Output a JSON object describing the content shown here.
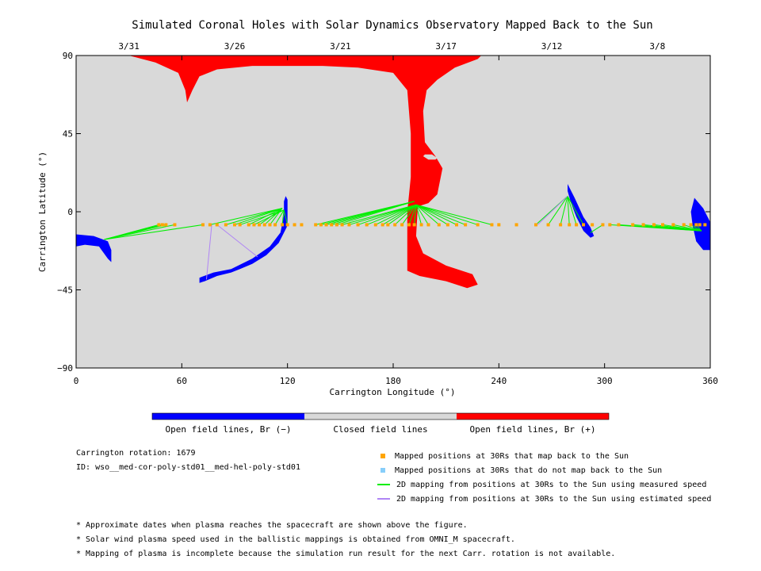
{
  "chart_data": {
    "type": "map",
    "title": "Simulated Coronal Holes with Solar Dynamics Observatory Mapped Back to the Sun",
    "xlabel": "Carrington Longitude (°)",
    "ylabel": "Carrington Latitude (°)",
    "xlim": [
      0,
      360
    ],
    "ylim": [
      -90,
      90
    ],
    "x_ticks": [
      "0",
      "60",
      "120",
      "180",
      "240",
      "300",
      "360"
    ],
    "y_ticks": [
      "90",
      "45",
      "0",
      "−45",
      "−90"
    ],
    "top_axis_dates": [
      {
        "label": "3/31",
        "lon": 30
      },
      {
        "label": "3/26",
        "lon": 90
      },
      {
        "label": "3/21",
        "lon": 150
      },
      {
        "label": "3/17",
        "lon": 210
      },
      {
        "label": "3/12",
        "lon": 270
      },
      {
        "label": "3/8",
        "lon": 330
      }
    ],
    "colors": {
      "closed": "#d9d9d9",
      "open_negative": "#0000ff",
      "open_positive": "#ff0000",
      "mapped_point": "#ffa500",
      "unmapped_point": "#87cefa",
      "measured_line": "#00ee00",
      "estimated_line": "#b085f5"
    },
    "positive_hole": [
      [
        30,
        90
      ],
      [
        230,
        90
      ],
      [
        228,
        88
      ],
      [
        215,
        83
      ],
      [
        205,
        76
      ],
      [
        199,
        70
      ],
      [
        197,
        58
      ],
      [
        198,
        40
      ],
      [
        204,
        32
      ],
      [
        208,
        25
      ],
      [
        205,
        10
      ],
      [
        200,
        5
      ],
      [
        194,
        3
      ],
      [
        193,
        -14
      ],
      [
        197,
        -24
      ],
      [
        210,
        -31
      ],
      [
        225,
        -36
      ],
      [
        228,
        -42
      ],
      [
        222,
        -44
      ],
      [
        210,
        -40
      ],
      [
        195,
        -37
      ],
      [
        188,
        -34
      ],
      [
        188,
        -14
      ],
      [
        188,
        0
      ],
      [
        190,
        20
      ],
      [
        190,
        45
      ],
      [
        188,
        70
      ],
      [
        180,
        80
      ],
      [
        160,
        83
      ],
      [
        140,
        84
      ],
      [
        100,
        84
      ],
      [
        80,
        82
      ],
      [
        70,
        78
      ],
      [
        66,
        70
      ],
      [
        63,
        63
      ],
      [
        62,
        70
      ],
      [
        58,
        80
      ],
      [
        45,
        86
      ]
    ],
    "positive_hole_inner": [
      [
        197,
        32
      ],
      [
        200,
        30
      ],
      [
        204,
        30
      ],
      [
        205,
        31
      ],
      [
        202,
        33
      ],
      [
        198,
        33
      ]
    ],
    "negative_holes": [
      [
        [
          0,
          -13
        ],
        [
          10,
          -14
        ],
        [
          18,
          -17
        ],
        [
          20,
          -22
        ],
        [
          20,
          -29
        ],
        [
          18,
          -27
        ],
        [
          13,
          -20
        ],
        [
          5,
          -19
        ],
        [
          0,
          -20
        ]
      ],
      [
        [
          119,
          9
        ],
        [
          120,
          7
        ],
        [
          120,
          -8
        ],
        [
          115,
          -18
        ],
        [
          108,
          -25
        ],
        [
          100,
          -30
        ],
        [
          93,
          -33
        ],
        [
          88,
          -35
        ],
        [
          80,
          -37
        ],
        [
          73,
          -40
        ],
        [
          70,
          -41
        ],
        [
          70,
          -38
        ],
        [
          78,
          -35
        ],
        [
          88,
          -33
        ],
        [
          100,
          -27
        ],
        [
          110,
          -20
        ],
        [
          116,
          -12
        ],
        [
          118,
          -2
        ],
        [
          118,
          6
        ]
      ],
      [
        [
          279,
          16
        ],
        [
          283,
          8
        ],
        [
          288,
          -3
        ],
        [
          292,
          -9
        ],
        [
          294,
          -14
        ],
        [
          292,
          -15
        ],
        [
          288,
          -11
        ],
        [
          284,
          -3
        ],
        [
          281,
          5
        ],
        [
          279,
          12
        ]
      ],
      [
        [
          351,
          8
        ],
        [
          356,
          2
        ],
        [
          360,
          -6
        ],
        [
          360,
          -22
        ],
        [
          356,
          -22
        ],
        [
          352,
          -17
        ],
        [
          350,
          -8
        ],
        [
          349,
          0
        ]
      ]
    ],
    "mapped_latitude": -7.5,
    "mapped_longitudes": [
      47,
      49,
      51,
      56,
      72,
      76,
      80,
      85,
      90,
      93,
      98,
      101,
      104,
      107,
      110,
      113,
      117,
      120,
      124,
      128,
      136,
      139,
      142,
      145,
      148,
      151,
      155,
      160,
      165,
      170,
      174,
      177,
      181,
      185,
      189,
      192,
      196,
      200,
      206,
      211,
      216,
      221,
      228,
      236,
      240,
      250,
      261,
      268,
      275,
      280,
      284,
      288,
      293,
      299,
      303,
      308,
      316,
      322,
      328,
      333,
      339,
      345,
      349,
      352,
      354,
      357
    ],
    "unmapped_longitudes": [],
    "measured_speed_mappings": [
      {
        "foot": [
          118,
          1
        ],
        "from": [
          101,
          113,
          117,
          120,
          93
        ]
      },
      {
        "foot": [
          117,
          2
        ],
        "from": [
          76,
          85,
          90,
          98,
          104,
          107,
          110
        ]
      },
      {
        "foot": [
          193,
          4
        ],
        "from": [
          151,
          155,
          160,
          165,
          170,
          174,
          177,
          181,
          185,
          189,
          192,
          196,
          200,
          206,
          211,
          216,
          221,
          228,
          236
        ]
      },
      {
        "foot": [
          192,
          6
        ],
        "from": [
          136,
          139,
          142,
          145,
          148
        ]
      },
      {
        "foot": [
          16,
          -16
        ],
        "from": [
          47,
          49,
          51,
          56,
          72
        ]
      },
      {
        "foot": [
          279,
          9
        ],
        "from": [
          261,
          268,
          275,
          280,
          284,
          288
        ]
      },
      {
        "foot": [
          292,
          -12
        ],
        "from": [
          299
        ]
      },
      {
        "foot": [
          355,
          -11
        ],
        "from": [
          303,
          308,
          316,
          322,
          328,
          333,
          339,
          345,
          349,
          352
        ]
      }
    ],
    "estimated_speed_mappings": [
      {
        "foot": [
          74,
          -39
        ],
        "from": [
          77
        ]
      },
      {
        "foot": [
          103,
          -26
        ],
        "from": [
          80
        ]
      },
      {
        "foot": [
          279,
          9
        ],
        "from": [
          262
        ]
      }
    ],
    "colorbar": {
      "segments": [
        "open_negative",
        "closed",
        "open_positive"
      ],
      "labels": [
        "Open field lines, Br (−)",
        "Closed field lines",
        "Open field lines, Br (+)"
      ]
    },
    "info": {
      "carrington_rotation": "Carrington rotation: 1679",
      "id": "ID: wso__med-cor-poly-std01__med-hel-poly-std01"
    },
    "legend": [
      {
        "kind": "square",
        "color_key": "mapped_point",
        "label": "Mapped positions at 30Rs that map back to the Sun"
      },
      {
        "kind": "square",
        "color_key": "unmapped_point",
        "label": "Mapped positions at 30Rs that do not map back to the Sun"
      },
      {
        "kind": "line",
        "color_key": "measured_line",
        "label": "2D mapping from positions at 30Rs to the Sun using measured speed"
      },
      {
        "kind": "line",
        "color_key": "estimated_line",
        "label": "2D mapping from positions at 30Rs to the Sun using estimated speed"
      }
    ],
    "footnotes": [
      "* Approximate dates when plasma reaches the spacecraft are shown above the figure.",
      "* Solar wind plasma speed used in the ballistic mappings is obtained from OMNI_M spacecraft.",
      "* Mapping of plasma is incomplete because the simulation run result for the next Carr. rotation is not available."
    ]
  }
}
